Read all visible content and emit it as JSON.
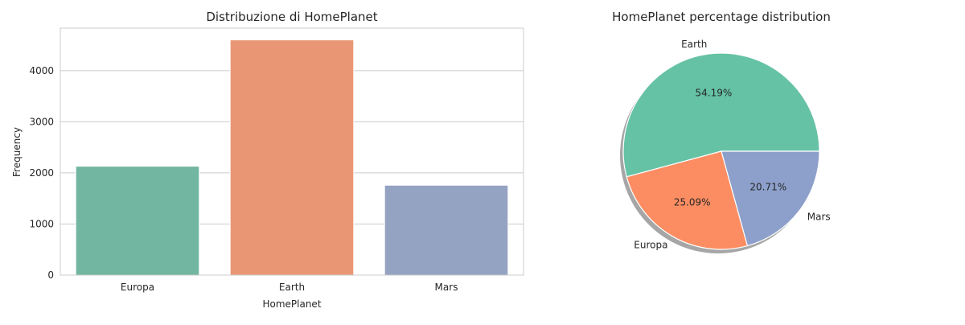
{
  "chart_data": [
    {
      "type": "bar",
      "title": "Distribuzione di HomePlanet",
      "xlabel": "HomePlanet",
      "ylabel": "Frequency",
      "categories": [
        "Europa",
        "Earth",
        "Mars"
      ],
      "values": [
        2131,
        4602,
        1759
      ],
      "colors": [
        "#72b6a1",
        "#e99675",
        "#95a3c3"
      ],
      "yticks": [
        0,
        1000,
        2000,
        3000,
        4000
      ],
      "ylim": [
        0,
        4832
      ],
      "grid": true
    },
    {
      "type": "pie",
      "title": "HomePlanet percentage distribution",
      "labels": [
        "Earth",
        "Europa",
        "Mars"
      ],
      "values": [
        54.19,
        25.09,
        20.71
      ],
      "percent_labels": [
        "54.19%",
        "25.09%",
        "20.71%"
      ],
      "colors": [
        "#66c2a5",
        "#fc8d62",
        "#8da0cb"
      ],
      "shadow": true
    }
  ]
}
